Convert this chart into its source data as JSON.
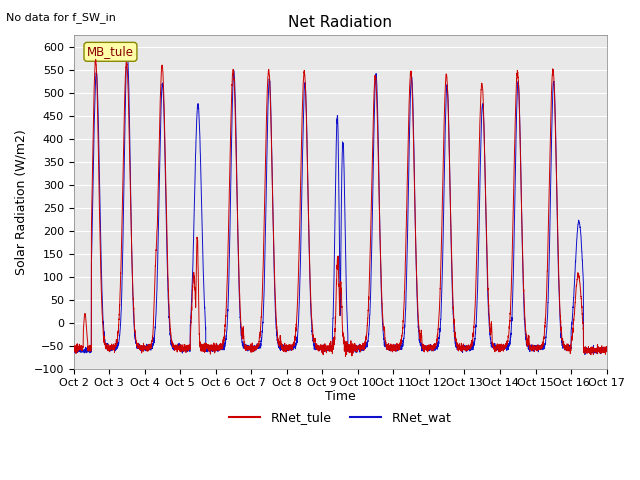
{
  "title": "Net Radiation",
  "subtitle": "No data for f_SW_in",
  "ylabel": "Solar Radiation (W/m2)",
  "xlabel": "Time",
  "ylim": [
    -100,
    625
  ],
  "yticks": [
    -100,
    -50,
    0,
    50,
    100,
    150,
    200,
    250,
    300,
    350,
    400,
    450,
    500,
    550,
    600
  ],
  "xtick_labels": [
    "Oct 2",
    "Oct 3",
    "Oct 4",
    "Oct 5",
    "Oct 6",
    "Oct 7",
    "Oct 8",
    "Oct 9",
    "Oct 10",
    "Oct 11",
    "Oct 12",
    "Oct 13",
    "Oct 14",
    "Oct 15",
    "Oct 16",
    "Oct 17"
  ],
  "legend_labels": [
    "RNet_tule",
    "RNet_wat"
  ],
  "legend_colors": [
    "#cc0000",
    "#1010cc"
  ],
  "site_label": "MB_tule",
  "plot_bg": "#e8e8e8",
  "line_color_tule": "#cc0000",
  "line_color_wat": "#1010cc",
  "n_days": 15,
  "pts_per_day": 288
}
